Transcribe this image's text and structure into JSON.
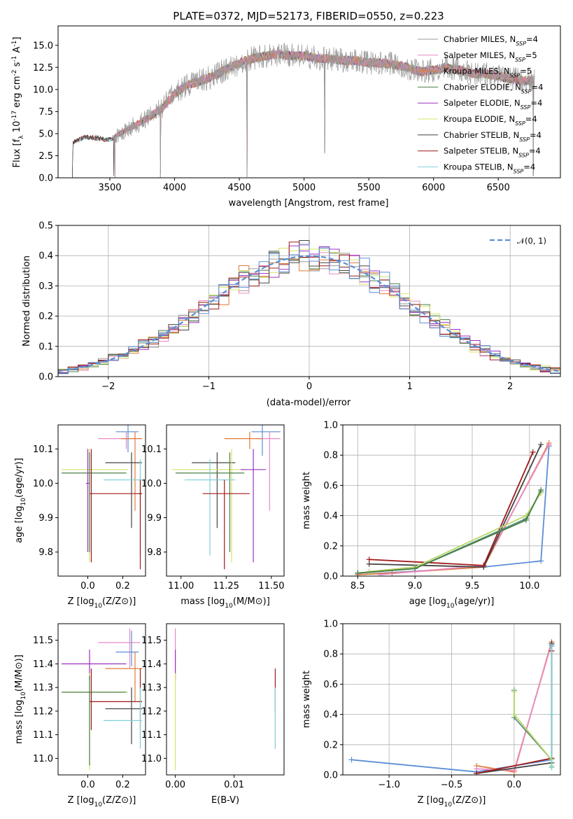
{
  "colors": {
    "Chabrier MILES": "#9a9a9a",
    "Salpeter MILES": "#e78ac3",
    "Kroupa MILES": "#e07b39",
    "Chabrier ELODIE": "#4a7f47",
    "Salpeter ELODIE": "#9b30c0",
    "Kroupa ELODIE": "#d7e36a",
    "Chabrier STELIB": "#444444",
    "Salpeter STELIB": "#a01919",
    "Kroupa STELIB": "#7ecfd6",
    "blue": "#5b8ed6",
    "lime": "#b8d86a",
    "teal": "#5a8f7b"
  },
  "chart_data": [
    {
      "type": "line",
      "title": "PLATE=0372, MJD=52173, FIBERID=0550, z=0.223",
      "xlabel": "wavelength [Angstrom, rest frame]",
      "ylabel": "Flux [f_λ 10^-17 erg cm^-2 s^-1 A^-1]",
      "xlim": [
        3100,
        6980
      ],
      "ylim": [
        0,
        17.2
      ],
      "xticks": [
        3500,
        4000,
        4500,
        5000,
        5500,
        6000,
        6500
      ],
      "yticks": [
        0.0,
        2.5,
        5.0,
        7.5,
        10.0,
        12.5,
        15.0
      ],
      "legend_loc": "upper right",
      "legend": [
        {
          "name": "Chabrier MILES, N_SSP=4"
        },
        {
          "name": "Salpeter MILES, N_SSP=5"
        },
        {
          "name": "Kroupa MILES, N_SSP=5"
        },
        {
          "name": "Chabrier ELODIE, N_SSP=4"
        },
        {
          "name": "Salpeter ELODIE, N_SSP=4"
        },
        {
          "name": "Kroupa ELODIE, N_SSP=4"
        },
        {
          "name": "Chabrier STELIB, N_SSP=4"
        },
        {
          "name": "Salpeter STELIB, N_SSP=4"
        },
        {
          "name": "Kroupa STELIB, N_SSP=4"
        }
      ],
      "continuum": [
        [
          3210,
          0
        ],
        [
          3215,
          4.0
        ],
        [
          3300,
          4.6
        ],
        [
          3400,
          4.5
        ],
        [
          3500,
          4.3
        ],
        [
          3600,
          5.2
        ],
        [
          3700,
          6.0
        ],
        [
          3800,
          6.8
        ],
        [
          3900,
          7.8
        ],
        [
          4000,
          9.5
        ],
        [
          4100,
          10.5
        ],
        [
          4200,
          11.0
        ],
        [
          4300,
          11.5
        ],
        [
          4400,
          12.3
        ],
        [
          4500,
          13.0
        ],
        [
          4600,
          13.5
        ],
        [
          4700,
          13.8
        ],
        [
          4800,
          14.0
        ],
        [
          4900,
          13.8
        ],
        [
          5000,
          13.8
        ],
        [
          5100,
          13.5
        ],
        [
          5200,
          13.5
        ],
        [
          5300,
          13.3
        ],
        [
          5400,
          13.3
        ],
        [
          5500,
          13.0
        ],
        [
          5600,
          13.0
        ],
        [
          5700,
          12.8
        ],
        [
          5800,
          12.5
        ],
        [
          5900,
          12.0
        ],
        [
          6000,
          12.2
        ],
        [
          6100,
          12.5
        ],
        [
          6200,
          12.2
        ],
        [
          6300,
          11.8
        ],
        [
          6400,
          11.8
        ],
        [
          6500,
          11.5
        ],
        [
          6600,
          11.2
        ],
        [
          6700,
          11.0
        ],
        [
          6780,
          11.0
        ]
      ],
      "absorption_lines": [
        [
          3530,
          0.2
        ],
        [
          3890,
          0.5
        ],
        [
          4560,
          0.1
        ],
        [
          5160,
          2.8
        ],
        [
          6770,
          0.2
        ]
      ]
    },
    {
      "type": "line",
      "xlabel": "(data-model)/error",
      "ylabel": "Normed distribution",
      "xlim": [
        -2.5,
        2.5
      ],
      "ylim": [
        0,
        0.5
      ],
      "xticks": [
        -2,
        -1,
        0,
        1,
        2
      ],
      "yticks": [
        0.0,
        0.1,
        0.2,
        0.3,
        0.4,
        0.5
      ],
      "legend": [
        {
          "name": "𝒩(0, 1)"
        }
      ],
      "series": [
        {
          "name": "N(0,1)",
          "mu": 0,
          "sigma": 1
        }
      ],
      "histogram_bin_width": 0.1
    },
    {
      "type": "scatter",
      "xlabel": "Z [log10(Z/Z⊙)]",
      "ylabel": "age  [log10(age/yr)]",
      "xlim": [
        -0.17,
        0.33
      ],
      "ylim": [
        9.73,
        10.17
      ],
      "xticks": [
        0.0,
        0.2
      ],
      "yticks": [
        9.8,
        9.9,
        10.0,
        10.1
      ],
      "points": [
        {
          "color": "blue",
          "x": 0.23,
          "y": 10.15,
          "xl": 0.16,
          "xh": 0.29,
          "yl": 10.09,
          "yh": 10.17
        },
        {
          "color": "Salpeter MILES",
          "x": 0.22,
          "y": 10.13,
          "xl": 0.06,
          "xh": 0.31,
          "yl": 10.1,
          "yh": 10.15
        },
        {
          "color": "Kroupa MILES",
          "x": 0.27,
          "y": 10.13,
          "xl": 0.19,
          "xh": 0.31,
          "yl": 9.92,
          "yh": 10.15
        },
        {
          "color": "Chabrier STELIB",
          "x": 0.25,
          "y": 10.06,
          "xl": 0.1,
          "xh": 0.31,
          "yl": 9.87,
          "yh": 10.09
        },
        {
          "color": "Kroupa ELODIE",
          "x": 0.01,
          "y": 10.04,
          "xl": -0.15,
          "xh": 0.23,
          "yl": 9.77,
          "yh": 10.1
        },
        {
          "color": "Chabrier ELODIE",
          "x": 0.01,
          "y": 10.03,
          "xl": -0.15,
          "xh": 0.22,
          "yl": 9.8,
          "yh": 10.09
        },
        {
          "color": "Kroupa STELIB",
          "x": 0.3,
          "y": 10.01,
          "xl": 0.09,
          "xh": 0.31,
          "yl": 9.79,
          "yh": 10.07
        },
        {
          "color": "Salpeter STELIB",
          "x": 0.02,
          "y": 9.97,
          "xl": 0.01,
          "xh": 0.31,
          "yl": 9.77,
          "yh": 10.1
        },
        {
          "color": "Salpeter STELIB",
          "x": 0.3,
          "y": 9.97,
          "xl": 0.29,
          "xh": 0.31,
          "yl": 9.75,
          "yh": 10.01
        },
        {
          "color": "Salpeter ELODIE",
          "x": 0.0,
          "y": 10.0,
          "xl": -0.01,
          "xh": 0.01,
          "yl": 9.8,
          "yh": 10.1
        }
      ]
    },
    {
      "type": "scatter",
      "xlabel": "mass [log10(M/M⊙)]",
      "ylabel": "",
      "xlim": [
        10.92,
        11.57
      ],
      "ylim": [
        9.73,
        10.17
      ],
      "xticks": [
        11.0,
        11.25,
        11.5
      ],
      "yticks": [
        9.8,
        9.9,
        10.0,
        10.1
      ],
      "points": [
        {
          "color": "blue",
          "x": 11.45,
          "y": 10.15,
          "xl": 11.39,
          "xh": 11.55,
          "yl": 10.08,
          "yh": 10.17
        },
        {
          "color": "Salpeter MILES",
          "x": 11.49,
          "y": 10.13,
          "xl": 11.42,
          "xh": 11.55,
          "yl": 9.92,
          "yh": 10.15
        },
        {
          "color": "Kroupa MILES",
          "x": 11.38,
          "y": 10.13,
          "xl": 11.24,
          "xh": 11.45,
          "yl": 10.1,
          "yh": 10.15
        },
        {
          "color": "Chabrier STELIB",
          "x": 11.2,
          "y": 10.06,
          "xl": 11.06,
          "xh": 11.3,
          "yl": 9.87,
          "yh": 10.09
        },
        {
          "color": "Kroupa ELODIE",
          "x": 11.28,
          "y": 10.04,
          "xl": 10.95,
          "xh": 11.36,
          "yl": 9.77,
          "yh": 10.1
        },
        {
          "color": "Chabrier ELODIE",
          "x": 11.27,
          "y": 10.03,
          "xl": 10.97,
          "xh": 11.35,
          "yl": 9.8,
          "yh": 10.09
        },
        {
          "color": "Kroupa STELIB",
          "x": 11.16,
          "y": 10.01,
          "xl": 11.02,
          "xh": 11.3,
          "yl": 9.79,
          "yh": 10.07
        },
        {
          "color": "Salpeter STELIB",
          "x": 11.24,
          "y": 9.97,
          "xl": 11.12,
          "xh": 11.38,
          "yl": 9.75,
          "yh": 10.01
        },
        {
          "color": "Salpeter ELODIE",
          "x": 11.4,
          "y": 10.04,
          "xl": 11.33,
          "xh": 11.47,
          "yl": 9.77,
          "yh": 10.1
        }
      ]
    },
    {
      "type": "line",
      "xlabel": "age  [log10(age/yr)]",
      "ylabel": "mass weight",
      "xlim": [
        8.37,
        10.27
      ],
      "ylim": [
        0,
        1.0
      ],
      "xticks": [
        8.5,
        9.0,
        9.5,
        10.0
      ],
      "yticks": [
        0.0,
        0.2,
        0.4,
        0.6,
        0.8,
        1.0
      ],
      "series": [
        {
          "color": "blue",
          "x": [
            8.5,
            9.6,
            10.1,
            10.17
          ],
          "y": [
            0.01,
            0.06,
            0.1,
            0.86
          ]
        },
        {
          "color": "Kroupa MILES",
          "x": [
            8.5,
            8.8,
            9.6,
            10.17
          ],
          "y": [
            0.01,
            0.02,
            0.06,
            0.88
          ]
        },
        {
          "color": "Salpeter MILES",
          "x": [
            8.7,
            9.0,
            9.6,
            10.17
          ],
          "y": [
            0.01,
            0.03,
            0.07,
            0.87
          ]
        },
        {
          "color": "Chabrier STELIB",
          "x": [
            8.6,
            9.6,
            10.1
          ],
          "y": [
            0.08,
            0.06,
            0.87
          ]
        },
        {
          "color": "Salpeter STELIB",
          "x": [
            8.6,
            9.6,
            10.03
          ],
          "y": [
            0.11,
            0.07,
            0.82
          ]
        },
        {
          "color": "teal",
          "x": [
            8.5,
            9.0,
            9.97,
            10.1
          ],
          "y": [
            0.02,
            0.05,
            0.38,
            0.56
          ]
        },
        {
          "color": "lime",
          "x": [
            8.6,
            9.0,
            9.97,
            10.1
          ],
          "y": [
            0.03,
            0.06,
            0.4,
            0.55
          ]
        },
        {
          "color": "Chabrier ELODIE",
          "x": [
            8.5,
            9.0,
            9.97,
            10.1
          ],
          "y": [
            0.02,
            0.05,
            0.37,
            0.57
          ]
        }
      ]
    },
    {
      "type": "scatter",
      "xlabel": "Z [log10(Z/Z⊙)]",
      "ylabel": "mass [log10(M/M⊙)]",
      "xlim": [
        -0.17,
        0.33
      ],
      "ylim": [
        10.93,
        11.57
      ],
      "xticks": [
        0.0,
        0.2
      ],
      "yticks": [
        11.0,
        11.1,
        11.2,
        11.3,
        11.4,
        11.5
      ],
      "points": [
        {
          "color": "Salpeter MILES",
          "x": 0.24,
          "y": 11.49,
          "xl": 0.06,
          "xh": 0.3,
          "yl": 11.38,
          "yh": 11.55
        },
        {
          "color": "blue",
          "x": 0.25,
          "y": 11.45,
          "xl": 0.16,
          "xh": 0.29,
          "yl": 11.39,
          "yh": 11.54
        },
        {
          "color": "Salpeter ELODIE",
          "x": 0.01,
          "y": 11.4,
          "xl": -0.15,
          "xh": 0.22,
          "yl": 11.33,
          "yh": 11.46
        },
        {
          "color": "Kroupa MILES",
          "x": 0.27,
          "y": 11.38,
          "xl": 0.1,
          "xh": 0.31,
          "yl": 11.24,
          "yh": 11.45
        },
        {
          "color": "Kroupa ELODIE",
          "x": 0.01,
          "y": 11.28,
          "xl": -0.15,
          "xh": 0.23,
          "yl": 10.95,
          "yh": 11.36
        },
        {
          "color": "Chabrier ELODIE",
          "x": 0.01,
          "y": 11.28,
          "xl": -0.15,
          "xh": 0.22,
          "yl": 10.97,
          "yh": 11.35
        },
        {
          "color": "Salpeter STELIB",
          "x": 0.02,
          "y": 11.24,
          "xl": 0.01,
          "xh": 0.31,
          "yl": 11.12,
          "yh": 11.38
        },
        {
          "color": "Salpeter STELIB",
          "x": 0.3,
          "y": 11.24,
          "xl": 0.29,
          "xh": 0.31,
          "yl": 11.12,
          "yh": 11.38
        },
        {
          "color": "Chabrier STELIB",
          "x": 0.25,
          "y": 11.21,
          "xl": 0.1,
          "xh": 0.31,
          "yl": 11.06,
          "yh": 11.3
        },
        {
          "color": "Kroupa STELIB",
          "x": 0.3,
          "y": 11.16,
          "xl": 0.09,
          "xh": 0.31,
          "yl": 11.04,
          "yh": 11.3
        }
      ]
    },
    {
      "type": "scatter",
      "xlabel": "E(B-V)",
      "ylabel": "",
      "xlim": [
        -0.0015,
        0.0185
      ],
      "ylim": [
        10.93,
        11.57
      ],
      "xticks": [
        0.0,
        0.01
      ],
      "yticks": [
        11.0,
        11.1,
        11.2,
        11.3,
        11.4,
        11.5
      ],
      "points": [
        {
          "color": "Salpeter MILES",
          "x": 0.0,
          "y": 11.49,
          "yl": 11.38,
          "yh": 11.55
        },
        {
          "color": "Salpeter ELODIE",
          "x": 0.0,
          "y": 11.4,
          "yl": 11.33,
          "yh": 11.46
        },
        {
          "color": "Kroupa ELODIE",
          "x": 0.0,
          "y": 11.28,
          "yl": 10.95,
          "yh": 11.36
        },
        {
          "color": "Salpeter STELIB",
          "x": 0.017,
          "y": 11.3,
          "yl": 11.2,
          "yh": 11.38
        },
        {
          "color": "Kroupa STELIB",
          "x": 0.017,
          "y": 11.16,
          "yl": 11.04,
          "yh": 11.3
        }
      ]
    },
    {
      "type": "line",
      "xlabel": "Z [log10(Z/Z⊙)]",
      "ylabel": "mass weight",
      "xlim": [
        -1.37,
        0.37
      ],
      "ylim": [
        0,
        1.0
      ],
      "xticks": [
        -1.0,
        -0.5,
        0.0
      ],
      "yticks": [
        0.0,
        0.2,
        0.4,
        0.6,
        0.8,
        1.0
      ],
      "series": [
        {
          "color": "blue",
          "x": [
            -1.3,
            -0.3,
            0.3,
            0.3
          ],
          "y": [
            0.1,
            0.02,
            0.1,
            0.86
          ]
        },
        {
          "color": "Kroupa MILES",
          "x": [
            -0.3,
            0.0,
            0.3
          ],
          "y": [
            0.06,
            0.02,
            0.88
          ]
        },
        {
          "color": "Salpeter MILES",
          "x": [
            -0.3,
            0.0,
            0.3
          ],
          "y": [
            0.04,
            0.03,
            0.87
          ]
        },
        {
          "color": "Chabrier STELIB",
          "x": [
            -0.3,
            0.3,
            0.3
          ],
          "y": [
            0.01,
            0.08,
            0.87
          ]
        },
        {
          "color": "Salpeter STELIB",
          "x": [
            -0.3,
            0.3,
            0.3
          ],
          "y": [
            0.01,
            0.11,
            0.82
          ]
        },
        {
          "color": "teal",
          "x": [
            0.0,
            0.0,
            0.3,
            0.3
          ],
          "y": [
            0.56,
            0.38,
            0.1,
            0.05
          ]
        },
        {
          "color": "lime",
          "x": [
            0.0,
            0.0,
            0.3,
            0.3
          ],
          "y": [
            0.55,
            0.4,
            0.1,
            0.06
          ]
        },
        {
          "color": "Kroupa STELIB",
          "x": [
            0.3,
            0.3,
            0.3
          ],
          "y": [
            0.05,
            0.4,
            0.85
          ]
        }
      ]
    }
  ]
}
